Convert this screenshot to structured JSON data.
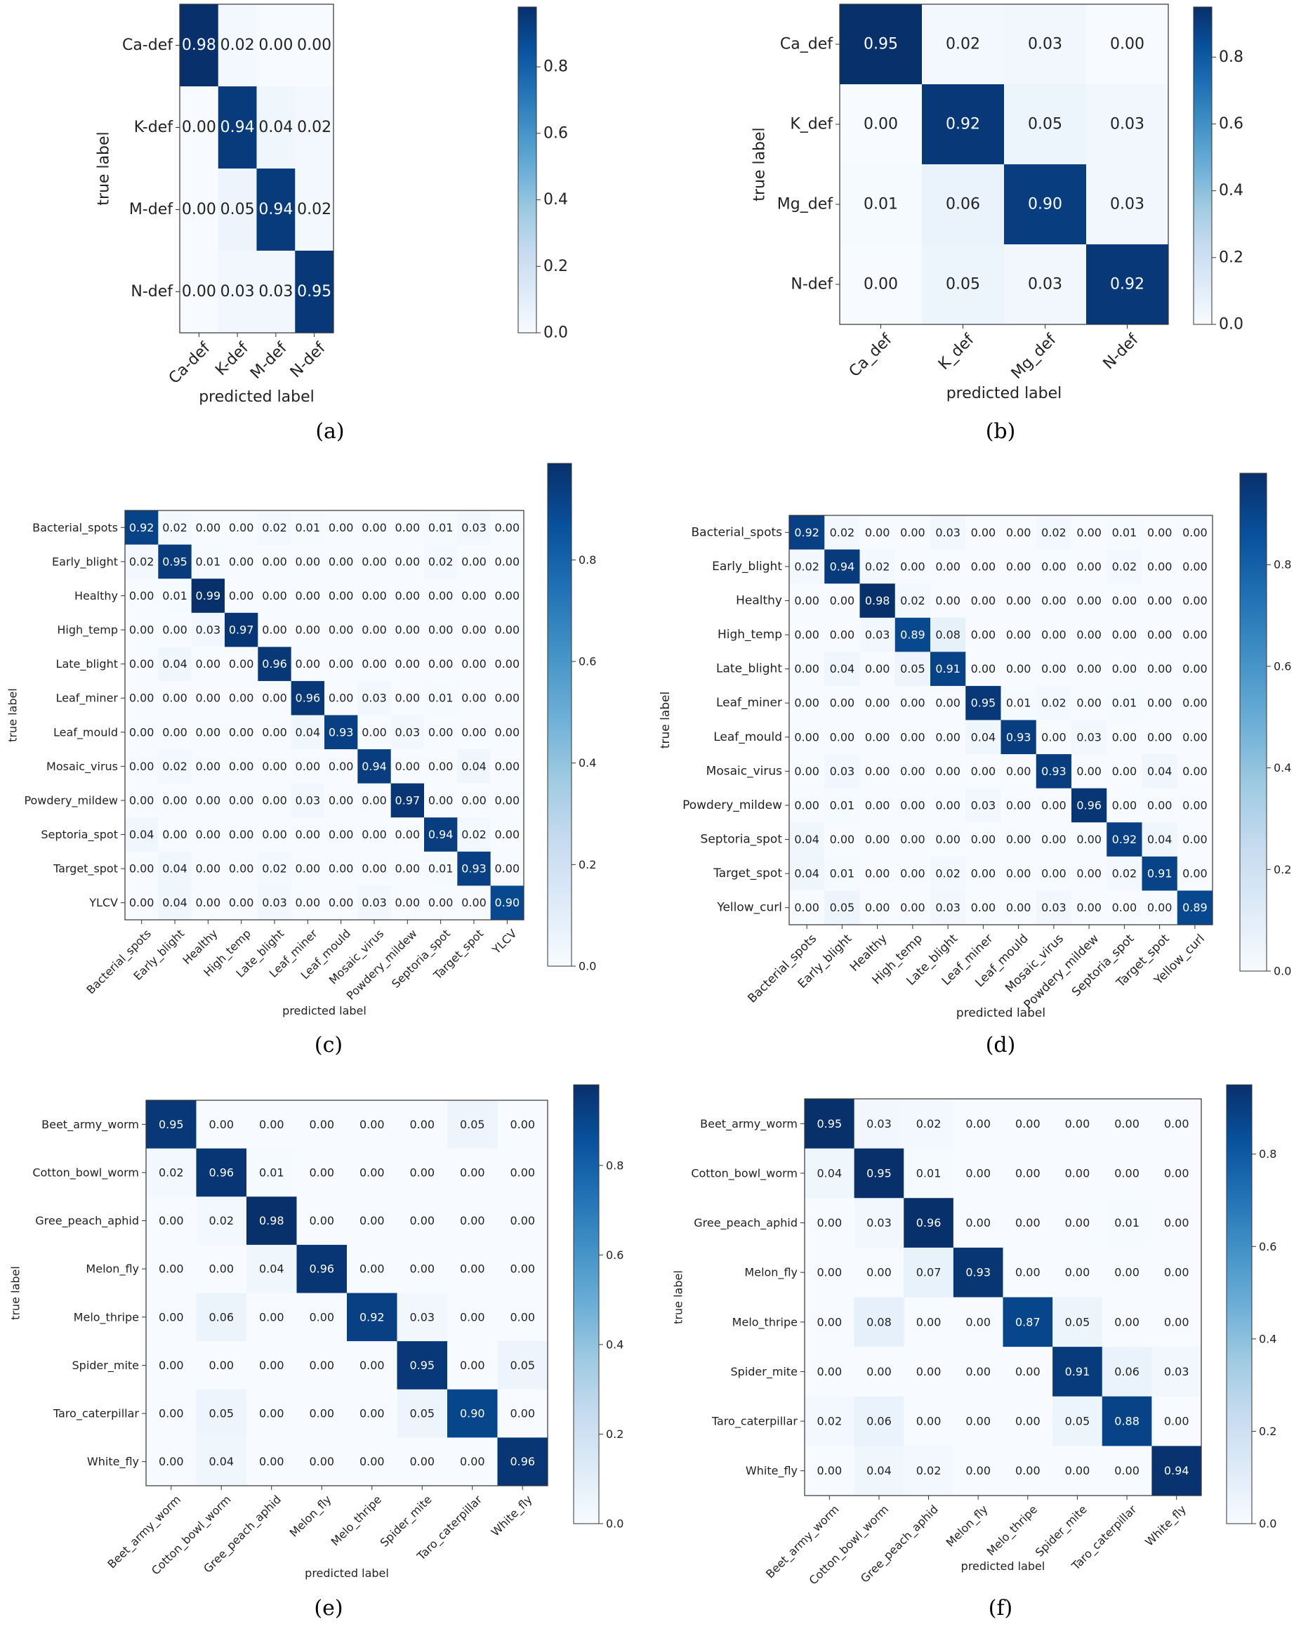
{
  "colorscale": {
    "low": "#f7fbff",
    "mid": "#6baed6",
    "high": "#08306b"
  },
  "chart_data": [
    {
      "type": "heatmap",
      "caption": "(a)",
      "title": "",
      "xlabel": "predicted label",
      "ylabel": "true label",
      "labels": [
        "Ca-def",
        "K-def",
        "M-def",
        "N-def"
      ],
      "matrix": [
        [
          0.98,
          0.02,
          0.0,
          0.0
        ],
        [
          0.0,
          0.94,
          0.04,
          0.02
        ],
        [
          0.0,
          0.05,
          0.94,
          0.02
        ],
        [
          0.0,
          0.03,
          0.03,
          0.95
        ]
      ],
      "colorbar_ticks": [
        "0.0",
        "0.2",
        "0.4",
        "0.6",
        "0.8"
      ],
      "colorbar_range": [
        0,
        0.98
      ]
    },
    {
      "type": "heatmap",
      "caption": "(b)",
      "title": "",
      "xlabel": "predicted label",
      "ylabel": "true label",
      "labels": [
        "Ca_def",
        "K_def",
        "Mg_def",
        "N-def"
      ],
      "matrix": [
        [
          0.95,
          0.02,
          0.03,
          0.0
        ],
        [
          0.0,
          0.92,
          0.05,
          0.03
        ],
        [
          0.01,
          0.06,
          0.9,
          0.03
        ],
        [
          0.0,
          0.05,
          0.03,
          0.92
        ]
      ],
      "colorbar_ticks": [
        "0.0",
        "0.2",
        "0.4",
        "0.6",
        "0.8"
      ],
      "colorbar_range": [
        0,
        0.95
      ]
    },
    {
      "type": "heatmap",
      "caption": "(c)",
      "title": "",
      "xlabel": "predicted label",
      "ylabel": "true label",
      "labels": [
        "Bacterial_spots",
        "Early_blight",
        "Healthy",
        "High_temp",
        "Late_blight",
        "Leaf_miner",
        "Leaf_mould",
        "Mosaic_virus",
        "Powdery_mildew",
        "Septoria_spot",
        "Target_spot",
        "YLCV"
      ],
      "matrix": [
        [
          0.92,
          0.02,
          0.0,
          0.0,
          0.02,
          0.01,
          0.0,
          0.0,
          0.0,
          0.01,
          0.03,
          0.0
        ],
        [
          0.02,
          0.95,
          0.01,
          0.0,
          0.0,
          0.0,
          0.0,
          0.0,
          0.0,
          0.02,
          0.0,
          0.0
        ],
        [
          0.0,
          0.01,
          0.99,
          0.0,
          0.0,
          0.0,
          0.0,
          0.0,
          0.0,
          0.0,
          0.0,
          0.0
        ],
        [
          0.0,
          0.0,
          0.03,
          0.97,
          0.0,
          0.0,
          0.0,
          0.0,
          0.0,
          0.0,
          0.0,
          0.0
        ],
        [
          0.0,
          0.04,
          0.0,
          0.0,
          0.96,
          0.0,
          0.0,
          0.0,
          0.0,
          0.0,
          0.0,
          0.0
        ],
        [
          0.0,
          0.0,
          0.0,
          0.0,
          0.0,
          0.96,
          0.0,
          0.03,
          0.0,
          0.01,
          0.0,
          0.0
        ],
        [
          0.0,
          0.0,
          0.0,
          0.0,
          0.0,
          0.04,
          0.93,
          0.0,
          0.03,
          0.0,
          0.0,
          0.0
        ],
        [
          0.0,
          0.02,
          0.0,
          0.0,
          0.0,
          0.0,
          0.0,
          0.94,
          0.0,
          0.0,
          0.04,
          0.0
        ],
        [
          0.0,
          0.0,
          0.0,
          0.0,
          0.0,
          0.03,
          0.0,
          0.0,
          0.97,
          0.0,
          0.0,
          0.0
        ],
        [
          0.04,
          0.0,
          0.0,
          0.0,
          0.0,
          0.0,
          0.0,
          0.0,
          0.0,
          0.94,
          0.02,
          0.0
        ],
        [
          0.0,
          0.04,
          0.0,
          0.0,
          0.02,
          0.0,
          0.0,
          0.0,
          0.0,
          0.01,
          0.93,
          0.0
        ],
        [
          0.0,
          0.04,
          0.0,
          0.0,
          0.03,
          0.0,
          0.0,
          0.03,
          0.0,
          0.0,
          0.0,
          0.9
        ]
      ],
      "colorbar_ticks": [
        "0.0",
        "0.2",
        "0.4",
        "0.6",
        "0.8"
      ],
      "colorbar_range": [
        0,
        0.99
      ]
    },
    {
      "type": "heatmap",
      "caption": "(d)",
      "title": "",
      "xlabel": "predicted label",
      "ylabel": "true label",
      "labels": [
        "Bacterial_spots",
        "Early_blight",
        "Healthy",
        "High_temp",
        "Late_blight",
        "Leaf_miner",
        "Leaf_mould",
        "Mosaic_virus",
        "Powdery_mildew",
        "Septoria_spot",
        "Target_spot",
        "Yellow_curl"
      ],
      "matrix": [
        [
          0.92,
          0.02,
          0.0,
          0.0,
          0.03,
          0.0,
          0.0,
          0.02,
          0.0,
          0.01,
          0.0,
          0.0
        ],
        [
          0.02,
          0.94,
          0.02,
          0.0,
          0.0,
          0.0,
          0.0,
          0.0,
          0.0,
          0.02,
          0.0,
          0.0
        ],
        [
          0.0,
          0.0,
          0.98,
          0.02,
          0.0,
          0.0,
          0.0,
          0.0,
          0.0,
          0.0,
          0.0,
          0.0
        ],
        [
          0.0,
          0.0,
          0.03,
          0.89,
          0.08,
          0.0,
          0.0,
          0.0,
          0.0,
          0.0,
          0.0,
          0.0
        ],
        [
          0.0,
          0.04,
          0.0,
          0.05,
          0.91,
          0.0,
          0.0,
          0.0,
          0.0,
          0.0,
          0.0,
          0.0
        ],
        [
          0.0,
          0.0,
          0.0,
          0.0,
          0.0,
          0.95,
          0.01,
          0.02,
          0.0,
          0.01,
          0.0,
          0.0
        ],
        [
          0.0,
          0.0,
          0.0,
          0.0,
          0.0,
          0.04,
          0.93,
          0.0,
          0.03,
          0.0,
          0.0,
          0.0
        ],
        [
          0.0,
          0.03,
          0.0,
          0.0,
          0.0,
          0.0,
          0.0,
          0.93,
          0.0,
          0.0,
          0.04,
          0.0
        ],
        [
          0.0,
          0.01,
          0.0,
          0.0,
          0.0,
          0.03,
          0.0,
          0.0,
          0.96,
          0.0,
          0.0,
          0.0
        ],
        [
          0.04,
          0.0,
          0.0,
          0.0,
          0.0,
          0.0,
          0.0,
          0.0,
          0.0,
          0.92,
          0.04,
          0.0
        ],
        [
          0.04,
          0.01,
          0.0,
          0.0,
          0.02,
          0.0,
          0.0,
          0.0,
          0.0,
          0.02,
          0.91,
          0.0
        ],
        [
          0.0,
          0.05,
          0.0,
          0.0,
          0.03,
          0.0,
          0.0,
          0.03,
          0.0,
          0.0,
          0.0,
          0.89
        ]
      ],
      "colorbar_ticks": [
        "0.0",
        "0.2",
        "0.4",
        "0.6",
        "0.8"
      ],
      "colorbar_range": [
        0,
        0.98
      ]
    },
    {
      "type": "heatmap",
      "caption": "(e)",
      "title": "",
      "xlabel": "predicted label",
      "ylabel": "true label",
      "labels": [
        "Beet_army_worm",
        "Cotton_bowl_worm",
        "Gree_peach_aphid",
        "Melon_fly",
        "Melo_thripe",
        "Spider_mite",
        "Taro_caterpillar",
        "White_fly"
      ],
      "matrix": [
        [
          0.95,
          0.0,
          0.0,
          0.0,
          0.0,
          0.0,
          0.05,
          0.0
        ],
        [
          0.02,
          0.96,
          0.01,
          0.0,
          0.0,
          0.0,
          0.0,
          0.0
        ],
        [
          0.0,
          0.02,
          0.98,
          0.0,
          0.0,
          0.0,
          0.0,
          0.0
        ],
        [
          0.0,
          0.0,
          0.04,
          0.96,
          0.0,
          0.0,
          0.0,
          0.0
        ],
        [
          0.0,
          0.06,
          0.0,
          0.0,
          0.92,
          0.03,
          0.0,
          0.0
        ],
        [
          0.0,
          0.0,
          0.0,
          0.0,
          0.0,
          0.95,
          0.0,
          0.05
        ],
        [
          0.0,
          0.05,
          0.0,
          0.0,
          0.0,
          0.05,
          0.9,
          0.0
        ],
        [
          0.0,
          0.04,
          0.0,
          0.0,
          0.0,
          0.0,
          0.0,
          0.96
        ]
      ],
      "colorbar_ticks": [
        "0.0",
        "0.2",
        "0.4",
        "0.6",
        "0.8"
      ],
      "colorbar_range": [
        0,
        0.98
      ]
    },
    {
      "type": "heatmap",
      "caption": "(f)",
      "title": "",
      "xlabel": "predicted label",
      "ylabel": "true label",
      "labels": [
        "Beet_army_worm",
        "Cotton_bowl_worm",
        "Gree_peach_aphid",
        "Melon_fly",
        "Melo_thripe",
        "Spider_mite",
        "Taro_caterpillar",
        "White_fly"
      ],
      "matrix": [
        [
          0.95,
          0.03,
          0.02,
          0.0,
          0.0,
          0.0,
          0.0,
          0.0
        ],
        [
          0.04,
          0.95,
          0.01,
          0.0,
          0.0,
          0.0,
          0.0,
          0.0
        ],
        [
          0.0,
          0.03,
          0.96,
          0.0,
          0.0,
          0.0,
          0.01,
          0.0
        ],
        [
          0.0,
          0.0,
          0.07,
          0.93,
          0.0,
          0.0,
          0.0,
          0.0
        ],
        [
          0.0,
          0.08,
          0.0,
          0.0,
          0.87,
          0.05,
          0.0,
          0.0
        ],
        [
          0.0,
          0.0,
          0.0,
          0.0,
          0.0,
          0.91,
          0.06,
          0.03
        ],
        [
          0.02,
          0.06,
          0.0,
          0.0,
          0.0,
          0.05,
          0.88,
          0.0
        ],
        [
          0.0,
          0.04,
          0.02,
          0.0,
          0.0,
          0.0,
          0.0,
          0.94
        ]
      ],
      "colorbar_ticks": [
        "0.0",
        "0.2",
        "0.4",
        "0.6",
        "0.8"
      ],
      "colorbar_range": [
        0,
        0.95
      ]
    }
  ]
}
